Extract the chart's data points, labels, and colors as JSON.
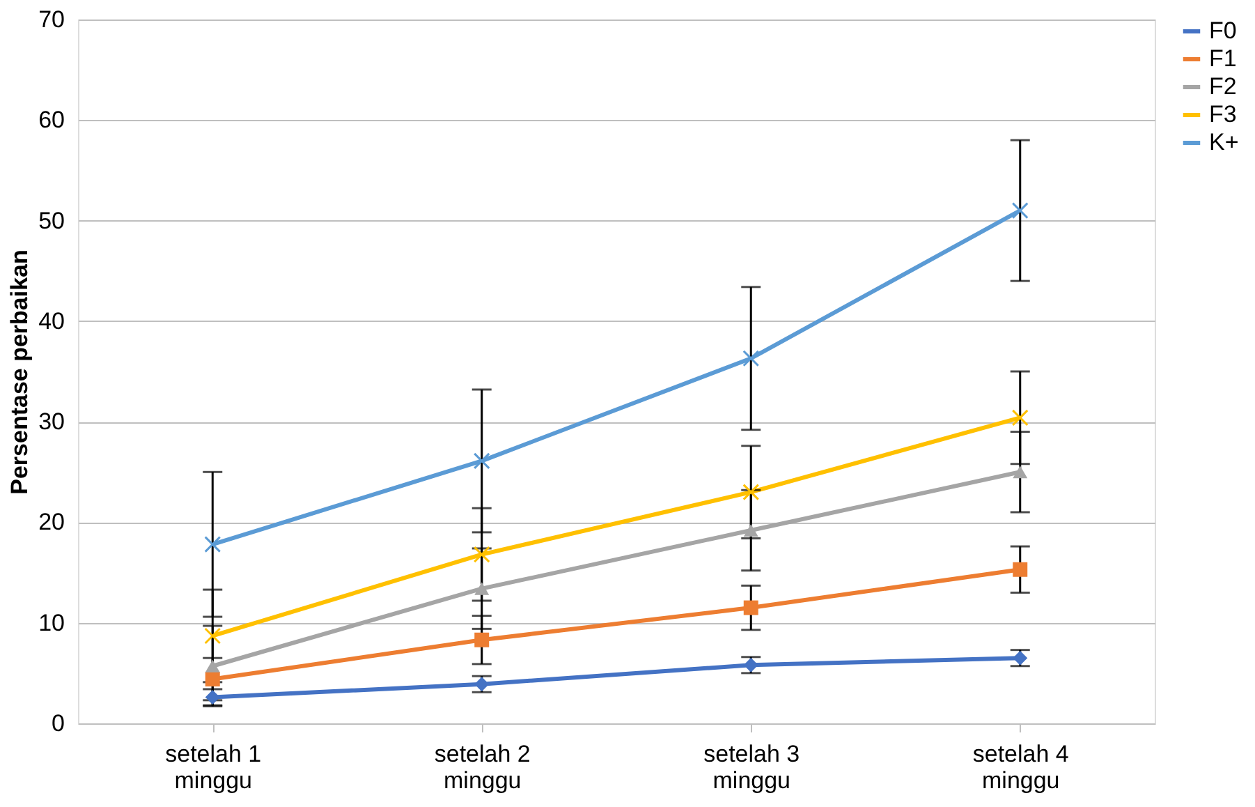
{
  "chart_data": {
    "type": "line",
    "ylabel": "Persentase perbaikan",
    "categories": [
      "setelah 1 minggu",
      "setelah 2 minggu",
      "setelah 3 minggu",
      "setelah 4 minggu"
    ],
    "series": [
      {
        "name": "F0",
        "color": "#4472c4",
        "marker": "diamond",
        "values": [
          2.6,
          3.9,
          5.8,
          6.5
        ],
        "errors": [
          0.8,
          0.8,
          0.8,
          0.8
        ]
      },
      {
        "name": "F1",
        "color": "#ed7d31",
        "marker": "square",
        "values": [
          4.4,
          8.3,
          11.5,
          15.3
        ],
        "errors": [
          2.1,
          2.4,
          2.2,
          2.3
        ]
      },
      {
        "name": "F2",
        "color": "#a5a5a5",
        "marker": "triangle",
        "values": [
          5.7,
          13.4,
          19.2,
          25.0
        ],
        "errors": [
          4.0,
          4.0,
          4.0,
          4.0
        ]
      },
      {
        "name": "F3",
        "color": "#ffc000",
        "marker": "cross",
        "values": [
          8.7,
          16.8,
          23.0,
          30.4
        ],
        "errors": [
          4.6,
          4.6,
          4.6,
          4.6
        ]
      },
      {
        "name": "K+",
        "color": "#5b9bd5",
        "marker": "cross",
        "values": [
          17.8,
          26.1,
          36.3,
          51.0
        ],
        "errors": [
          7.2,
          7.1,
          7.1,
          7.0
        ]
      }
    ],
    "ylim": [
      0,
      70
    ],
    "yticks": [
      0,
      10,
      20,
      30,
      40,
      50,
      60,
      70
    ],
    "grid": "y",
    "legend": "right",
    "line_style": "solid"
  }
}
